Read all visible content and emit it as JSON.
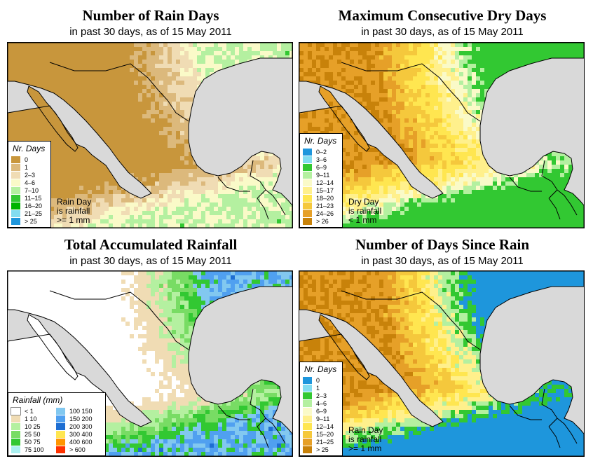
{
  "panels": [
    {
      "key": "rain_days",
      "title": "Number of Rain Days",
      "subtitle": "in past 30 days, as of  15 May 2011",
      "legend_title": "Nr. Days",
      "legend": [
        {
          "label": "0",
          "color": "#c8963c"
        },
        {
          "label": "1",
          "color": "#dcb97c"
        },
        {
          "label": "2–3",
          "color": "#f0dcb4"
        },
        {
          "label": "4–6",
          "color": "#fafac8"
        },
        {
          "label": "7–10",
          "color": "#b4f0a0"
        },
        {
          "label": "11–15",
          "color": "#32c832"
        },
        {
          "label": "16–20",
          "color": "#00b400"
        },
        {
          "label": "21–25",
          "color": "#82dcf0"
        },
        {
          "label": "> 25",
          "color": "#1e96dc"
        }
      ],
      "note": [
        "Rain Day",
        "is rainfall",
        ">= 1 mm"
      ]
    },
    {
      "key": "dry_days",
      "title": "Maximum Consecutive Dry Days",
      "subtitle": "in past 30 days, as of  15 May 2011",
      "legend_title": "Nr. Days",
      "legend": [
        {
          "label": "0–2",
          "color": "#1e96dc"
        },
        {
          "label": "3–6",
          "color": "#82dcf0"
        },
        {
          "label": "6–9",
          "color": "#32c832"
        },
        {
          "label": "9–11",
          "color": "#b4f0a0"
        },
        {
          "label": "12–14",
          "color": "#fafac8"
        },
        {
          "label": "15–17",
          "color": "#fff08c"
        },
        {
          "label": "18–20",
          "color": "#ffe650"
        },
        {
          "label": "21–23",
          "color": "#f5c83c"
        },
        {
          "label": "24–26",
          "color": "#e6a028"
        },
        {
          "label": "> 26",
          "color": "#c8820a"
        }
      ],
      "note": [
        "Dry Day",
        "is rainfall",
        "< 1 mm"
      ]
    },
    {
      "key": "accum_rain",
      "title": "Total Accumulated Rainfall",
      "subtitle": "in past 30 days, as of  15 May 2011",
      "legend_title": "Rainfall (mm)",
      "legend": [
        {
          "label": "< 1",
          "color": "#ffffff"
        },
        {
          "label": "1    10",
          "color": "#f0dcb4"
        },
        {
          "label": "10    25",
          "color": "#b4f0a0"
        },
        {
          "label": "25    50",
          "color": "#78dc64"
        },
        {
          "label": "50    75",
          "color": "#32c832"
        },
        {
          "label": "75    100",
          "color": "#aaf0f0"
        },
        {
          "label": "100    150",
          "color": "#82c8f0"
        },
        {
          "label": "150    200",
          "color": "#50a0f0"
        },
        {
          "label": "200    300",
          "color": "#1e6ed2"
        },
        {
          "label": "300    400",
          "color": "#ffe650"
        },
        {
          "label": "400    600",
          "color": "#ff9600"
        },
        {
          "label": "> 600",
          "color": "#ff3200"
        }
      ],
      "note": []
    },
    {
      "key": "since_rain",
      "title": "Number of Days Since Rain",
      "subtitle": "in past 30 days, as of  15 May 2011",
      "legend_title": "Nr. Days",
      "legend": [
        {
          "label": "0",
          "color": "#1e96dc"
        },
        {
          "label": "1",
          "color": "#82dcf0"
        },
        {
          "label": "2–3",
          "color": "#32c832"
        },
        {
          "label": "4–6",
          "color": "#b4f0a0"
        },
        {
          "label": "6–9",
          "color": "#fafac8"
        },
        {
          "label": "9–11",
          "color": "#fff08c"
        },
        {
          "label": "12–14",
          "color": "#ffe650"
        },
        {
          "label": "15–20",
          "color": "#f5c83c"
        },
        {
          "label": "21–25",
          "color": "#e6a028"
        },
        {
          "label": "> 25",
          "color": "#c8820a"
        }
      ],
      "note": [
        "Rain Day",
        "is rainfall",
        ">= 1 mm"
      ]
    }
  ],
  "colors": {
    "sea": "#d9d9d9",
    "border": "#000000"
  }
}
